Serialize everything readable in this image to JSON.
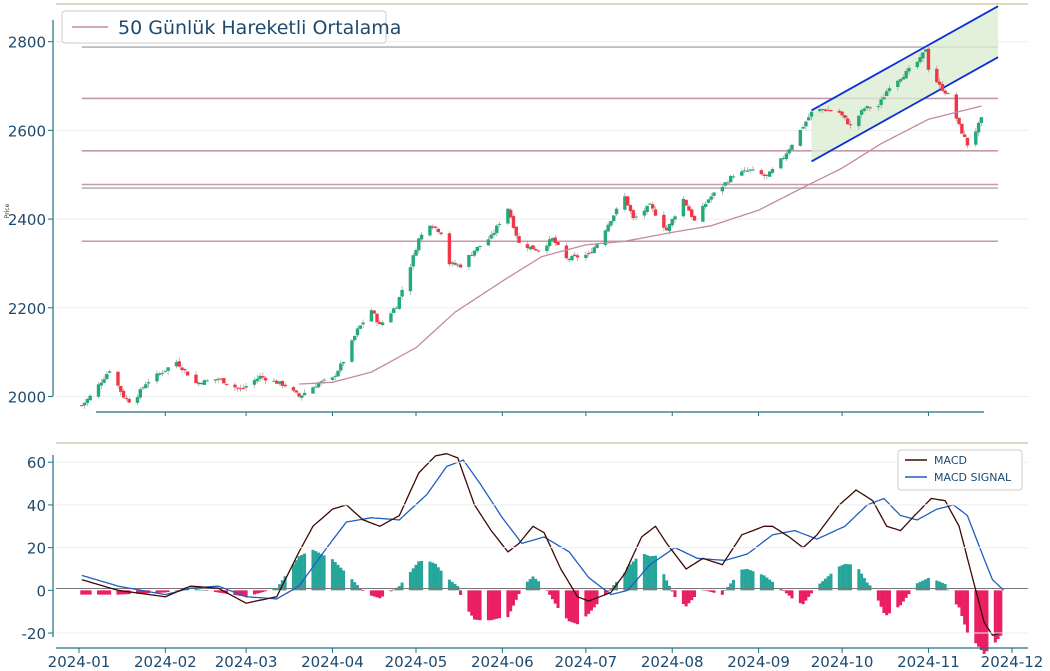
{
  "chart_data": [
    {
      "type": "candlestick",
      "panel": "price",
      "ylabel": "Price",
      "ylim": [
        1965,
        2885
      ],
      "yticks": [
        2000,
        2200,
        2400,
        2600,
        2800
      ],
      "legend": {
        "label": "50 Günlük Hareketli Ortalama",
        "placement": "top-left"
      },
      "horizontal_levels": [
        2788,
        2672,
        2554,
        2478,
        2470,
        2350
      ],
      "trend_channel": {
        "start_date": "2024-09-20",
        "end_date": "2024-11-26",
        "upper_start": 2645,
        "upper_end": 2880,
        "lower_start": 2530,
        "lower_end": 2765
      },
      "price_anchors": [
        [
          "2024-01-02",
          1980
        ],
        [
          "2024-01-05",
          2000
        ],
        [
          "2024-01-12",
          2060
        ],
        [
          "2024-01-17",
          2000
        ],
        [
          "2024-01-20",
          1985
        ],
        [
          "2024-01-25",
          2030
        ],
        [
          "2024-02-05",
          2078
        ],
        [
          "2024-02-12",
          2030
        ],
        [
          "2024-02-20",
          2040
        ],
        [
          "2024-02-28",
          2015
        ],
        [
          "2024-03-06",
          2045
        ],
        [
          "2024-03-15",
          2025
        ],
        [
          "2024-03-20",
          2000
        ],
        [
          "2024-03-27",
          2030
        ],
        [
          "2024-04-01",
          2040
        ],
        [
          "2024-04-05",
          2080
        ],
        [
          "2024-04-10",
          2150
        ],
        [
          "2024-04-15",
          2195
        ],
        [
          "2024-04-18",
          2160
        ],
        [
          "2024-04-24",
          2205
        ],
        [
          "2024-04-29",
          2295
        ],
        [
          "2024-05-02",
          2355
        ],
        [
          "2024-05-06",
          2390
        ],
        [
          "2024-05-10",
          2370
        ],
        [
          "2024-05-13",
          2300
        ],
        [
          "2024-05-17",
          2295
        ],
        [
          "2024-05-22",
          2330
        ],
        [
          "2024-05-28",
          2360
        ],
        [
          "2024-06-03",
          2425
        ],
        [
          "2024-06-07",
          2345
        ],
        [
          "2024-06-14",
          2330
        ],
        [
          "2024-06-19",
          2355
        ],
        [
          "2024-06-24",
          2310
        ],
        [
          "2024-07-02",
          2320
        ],
        [
          "2024-07-05",
          2345
        ],
        [
          "2024-07-10",
          2400
        ],
        [
          "2024-07-15",
          2450
        ],
        [
          "2024-07-18",
          2400
        ],
        [
          "2024-07-24",
          2430
        ],
        [
          "2024-07-30",
          2375
        ],
        [
          "2024-08-05",
          2445
        ],
        [
          "2024-08-09",
          2395
        ],
        [
          "2024-08-14",
          2445
        ],
        [
          "2024-08-19",
          2475
        ],
        [
          "2024-08-23",
          2500
        ],
        [
          "2024-08-29",
          2510
        ],
        [
          "2024-09-04",
          2495
        ],
        [
          "2024-09-10",
          2540
        ],
        [
          "2024-09-16",
          2600
        ],
        [
          "2024-09-20",
          2640
        ],
        [
          "2024-09-24",
          2648
        ],
        [
          "2024-09-30",
          2640
        ],
        [
          "2024-10-04",
          2610
        ],
        [
          "2024-10-09",
          2650
        ],
        [
          "2024-10-14",
          2655
        ],
        [
          "2024-10-18",
          2700
        ],
        [
          "2024-10-24",
          2730
        ],
        [
          "2024-10-29",
          2760
        ],
        [
          "2024-10-31",
          2785
        ],
        [
          "2024-11-01",
          2740
        ],
        [
          "2024-11-05",
          2700
        ],
        [
          "2024-11-08",
          2680
        ],
        [
          "2024-11-12",
          2610
        ],
        [
          "2024-11-15",
          2568
        ],
        [
          "2024-11-18",
          2600
        ],
        [
          "2024-11-20",
          2625
        ]
      ],
      "ma50_anchors": [
        [
          "2024-03-20",
          2028
        ],
        [
          "2024-04-01",
          2032
        ],
        [
          "2024-04-15",
          2055
        ],
        [
          "2024-05-01",
          2110
        ],
        [
          "2024-05-15",
          2190
        ],
        [
          "2024-06-01",
          2260
        ],
        [
          "2024-06-15",
          2315
        ],
        [
          "2024-07-01",
          2342
        ],
        [
          "2024-07-15",
          2350
        ],
        [
          "2024-08-01",
          2370
        ],
        [
          "2024-08-15",
          2385
        ],
        [
          "2024-09-01",
          2420
        ],
        [
          "2024-09-15",
          2465
        ],
        [
          "2024-10-01",
          2515
        ],
        [
          "2024-10-15",
          2570
        ],
        [
          "2024-11-01",
          2625
        ],
        [
          "2024-11-20",
          2655
        ]
      ]
    },
    {
      "type": "line+bar",
      "panel": "macd",
      "ylim": [
        -27,
        69
      ],
      "yticks": [
        -20,
        0,
        20,
        40,
        60
      ],
      "xlim": [
        "2024-01-01",
        "2024-12-01"
      ],
      "xtick_labels": [
        "2024-01",
        "2024-02",
        "2024-03",
        "2024-04",
        "2024-05",
        "2024-06",
        "2024-07",
        "2024-08",
        "2024-09",
        "2024-10",
        "2024-11",
        "2024-12"
      ],
      "legend": {
        "placement": "top-right",
        "entries": [
          "MACD",
          "MACD SIGNAL"
        ]
      },
      "series": [
        {
          "name": "MACD",
          "color": "#3d0a05",
          "anchors": [
            [
              "2024-01-02",
              5
            ],
            [
              "2024-01-15",
              0
            ],
            [
              "2024-02-01",
              -3
            ],
            [
              "2024-02-10",
              2
            ],
            [
              "2024-02-20",
              1
            ],
            [
              "2024-03-01",
              -6
            ],
            [
              "2024-03-12",
              -3
            ],
            [
              "2024-03-20",
              18
            ],
            [
              "2024-03-25",
              30
            ],
            [
              "2024-04-01",
              38
            ],
            [
              "2024-04-06",
              40
            ],
            [
              "2024-04-12",
              33
            ],
            [
              "2024-04-18",
              30
            ],
            [
              "2024-04-25",
              35
            ],
            [
              "2024-05-02",
              55
            ],
            [
              "2024-05-08",
              63
            ],
            [
              "2024-05-12",
              64
            ],
            [
              "2024-05-16",
              62
            ],
            [
              "2024-05-22",
              40
            ],
            [
              "2024-05-28",
              28
            ],
            [
              "2024-06-03",
              18
            ],
            [
              "2024-06-07",
              22
            ],
            [
              "2024-06-12",
              30
            ],
            [
              "2024-06-16",
              27
            ],
            [
              "2024-06-22",
              10
            ],
            [
              "2024-06-28",
              -3
            ],
            [
              "2024-07-02",
              -5
            ],
            [
              "2024-07-10",
              -1
            ],
            [
              "2024-07-15",
              8
            ],
            [
              "2024-07-21",
              25
            ],
            [
              "2024-07-26",
              30
            ],
            [
              "2024-07-30",
              22
            ],
            [
              "2024-08-06",
              10
            ],
            [
              "2024-08-12",
              15
            ],
            [
              "2024-08-19",
              12
            ],
            [
              "2024-08-26",
              26
            ],
            [
              "2024-09-03",
              30
            ],
            [
              "2024-09-06",
              30
            ],
            [
              "2024-09-12",
              25
            ],
            [
              "2024-09-17",
              20
            ],
            [
              "2024-09-22",
              26
            ],
            [
              "2024-09-30",
              40
            ],
            [
              "2024-10-06",
              47
            ],
            [
              "2024-10-12",
              42
            ],
            [
              "2024-10-17",
              30
            ],
            [
              "2024-10-22",
              28
            ],
            [
              "2024-10-27",
              35
            ],
            [
              "2024-11-02",
              43
            ],
            [
              "2024-11-07",
              42
            ],
            [
              "2024-11-12",
              30
            ],
            [
              "2024-11-15",
              15
            ],
            [
              "2024-11-18",
              0
            ],
            [
              "2024-11-21",
              -15
            ],
            [
              "2024-11-24",
              -21
            ],
            [
              "2024-11-27",
              -20
            ]
          ]
        },
        {
          "name": "MACD SIGNAL",
          "color": "#1f5fbf",
          "anchors": [
            [
              "2024-01-02",
              7
            ],
            [
              "2024-01-15",
              2
            ],
            [
              "2024-02-01",
              -2
            ],
            [
              "2024-02-10",
              1
            ],
            [
              "2024-02-20",
              2
            ],
            [
              "2024-03-01",
              -3
            ],
            [
              "2024-03-12",
              -4
            ],
            [
              "2024-03-20",
              2
            ],
            [
              "2024-03-30",
              20
            ],
            [
              "2024-04-06",
              32
            ],
            [
              "2024-04-15",
              34
            ],
            [
              "2024-04-25",
              33
            ],
            [
              "2024-05-05",
              45
            ],
            [
              "2024-05-12",
              58
            ],
            [
              "2024-05-18",
              61
            ],
            [
              "2024-05-24",
              50
            ],
            [
              "2024-06-01",
              34
            ],
            [
              "2024-06-08",
              22
            ],
            [
              "2024-06-16",
              25
            ],
            [
              "2024-06-25",
              18
            ],
            [
              "2024-07-02",
              6
            ],
            [
              "2024-07-10",
              -2
            ],
            [
              "2024-07-16",
              0
            ],
            [
              "2024-07-24",
              12
            ],
            [
              "2024-08-02",
              20
            ],
            [
              "2024-08-10",
              15
            ],
            [
              "2024-08-20",
              14
            ],
            [
              "2024-08-28",
              17
            ],
            [
              "2024-09-06",
              26
            ],
            [
              "2024-09-14",
              28
            ],
            [
              "2024-09-22",
              24
            ],
            [
              "2024-10-02",
              30
            ],
            [
              "2024-10-10",
              40
            ],
            [
              "2024-10-16",
              43
            ],
            [
              "2024-10-22",
              35
            ],
            [
              "2024-10-28",
              33
            ],
            [
              "2024-11-04",
              38
            ],
            [
              "2024-11-10",
              40
            ],
            [
              "2024-11-15",
              35
            ],
            [
              "2024-11-20",
              18
            ],
            [
              "2024-11-24",
              5
            ],
            [
              "2024-11-28",
              0
            ]
          ]
        }
      ],
      "histogram": {
        "positive_color": "#26a69a",
        "negative_color": "#e91e63"
      }
    }
  ]
}
